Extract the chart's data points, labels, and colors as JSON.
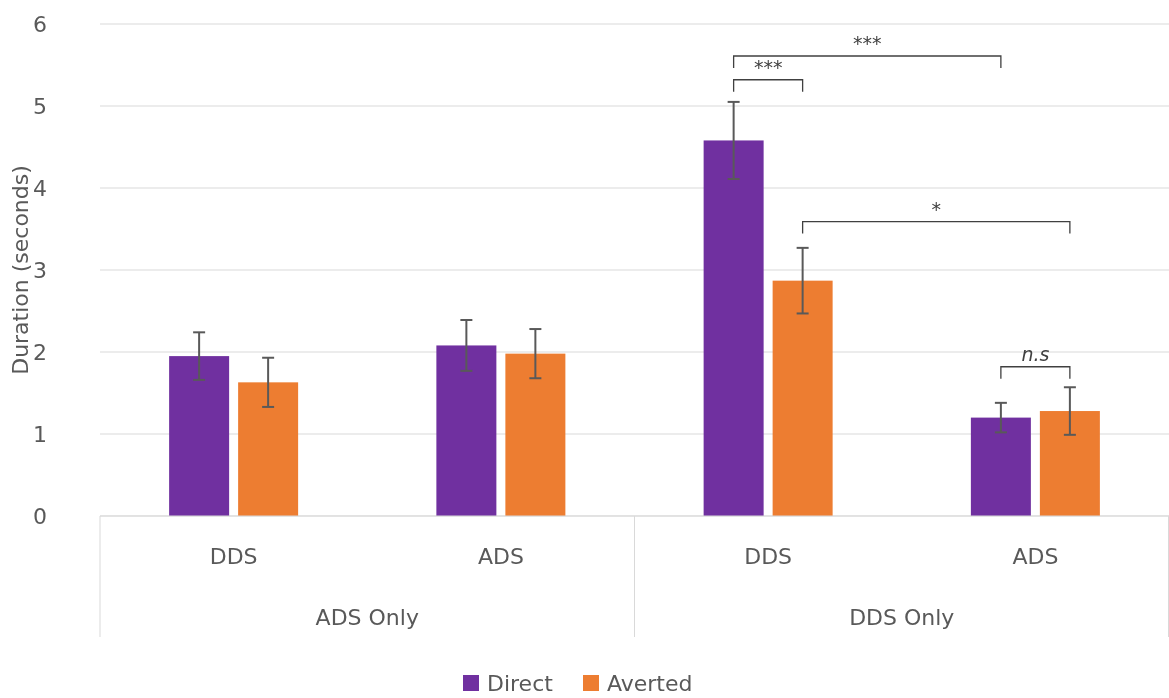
{
  "chart_data": {
    "type": "bar",
    "ylabel": "Duration (seconds)",
    "categories": [
      "DDS",
      "ADS",
      "DDS",
      "ADS"
    ],
    "series": [
      {
        "name": "Direct",
        "color": "#7030a0",
        "values": [
          1.95,
          2.08,
          4.58,
          1.2
        ],
        "errors": [
          0.29,
          0.31,
          0.47,
          0.18
        ]
      },
      {
        "name": "Averted",
        "color": "#ed7d31",
        "values": [
          1.63,
          1.98,
          2.87,
          1.28
        ],
        "errors": [
          0.3,
          0.3,
          0.4,
          0.29
        ]
      }
    ],
    "ylim": [
      0,
      6
    ],
    "yticks": [
      0,
      1,
      2,
      3,
      4,
      5,
      6
    ],
    "grid": "y",
    "legend": "bottom",
    "annotations": [
      "ADS Only",
      "DDS Only",
      "***",
      "***",
      "*",
      "n.s"
    ]
  }
}
